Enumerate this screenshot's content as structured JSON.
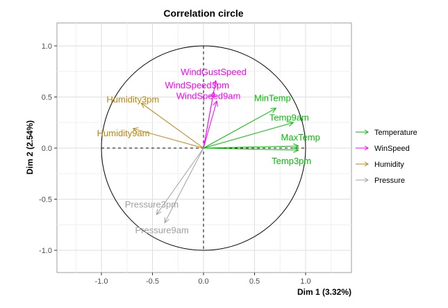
{
  "chart_data": {
    "type": "scatter",
    "title": "Correlation circle",
    "xlabel": "Dim 1 (3.32%)",
    "ylabel": "Dim 2 (2.54%)",
    "xlim": [
      -1.0,
      1.0
    ],
    "ylim": [
      -1.0,
      1.0
    ],
    "x_ticks": [
      -1.0,
      -0.5,
      0.0,
      0.5,
      1.0
    ],
    "y_ticks": [
      -1.0,
      -0.5,
      0.0,
      0.5,
      1.0
    ],
    "x_tick_labels": [
      "-1.0",
      "-0.5",
      "0.0",
      "0.5",
      "1.0"
    ],
    "y_tick_labels": [
      "-1.0",
      "-0.5",
      "0.0",
      "0.5",
      "1.0"
    ],
    "grid": true,
    "legend_position": "right",
    "series": [
      {
        "name": "Temperature",
        "color": "#00c000",
        "points": [
          {
            "label": "MinTemp",
            "x": 0.71,
            "y": 0.39
          },
          {
            "label": "Temp9am",
            "x": 0.88,
            "y": 0.25
          },
          {
            "label": "MaxTemp",
            "x": 0.93,
            "y": 0.02
          },
          {
            "label": "Temp3pm",
            "x": 0.93,
            "y": -0.02
          }
        ]
      },
      {
        "name": "WinSpeed",
        "color": "#ff00ff",
        "points": [
          {
            "label": "WindGustSpeed",
            "x": 0.12,
            "y": 0.66
          },
          {
            "label": "WindSpeed3pm",
            "x": 0.1,
            "y": 0.55
          },
          {
            "label": "WindSpeed9am",
            "x": 0.13,
            "y": 0.46
          }
        ]
      },
      {
        "name": "Humidity",
        "color": "#b8860b",
        "points": [
          {
            "label": "Humidity3pm",
            "x": -0.61,
            "y": 0.44
          },
          {
            "label": "Humidity9am",
            "x": -0.69,
            "y": 0.19
          }
        ]
      },
      {
        "name": "Pressure",
        "color": "#a0a0a0",
        "points": [
          {
            "label": "Pressure3pm",
            "x": -0.46,
            "y": -0.65
          },
          {
            "label": "Pressure9am",
            "x": -0.38,
            "y": -0.73
          }
        ]
      }
    ]
  }
}
